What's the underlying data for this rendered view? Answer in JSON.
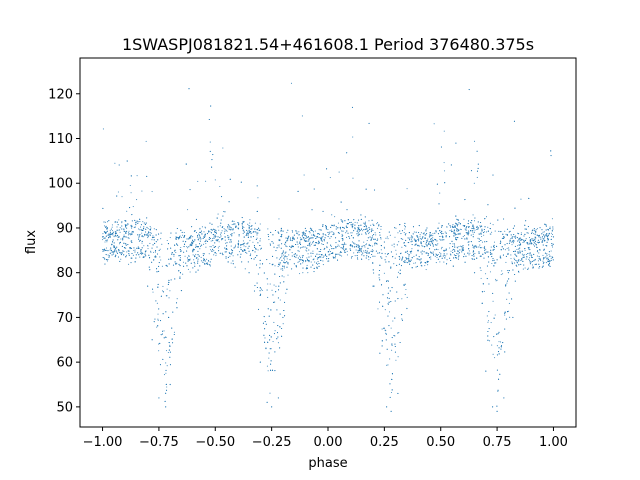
{
  "chart_data": {
    "type": "scatter",
    "title": "1SWASPJ081821.54+461608.1 Period 376480.375s",
    "xlabel": "phase",
    "ylabel": "flux",
    "xlim": [
      -1.1,
      1.1
    ],
    "ylim": [
      45.5,
      128
    ],
    "x_ticks": [
      -1.0,
      -0.75,
      -0.5,
      -0.25,
      0.0,
      0.25,
      0.5,
      0.75,
      1.0
    ],
    "x_tick_labels": [
      "−1.00",
      "−0.75",
      "−0.50",
      "−0.25",
      "0.00",
      "0.25",
      "0.50",
      "0.75",
      "1.00"
    ],
    "y_ticks": [
      50,
      60,
      70,
      80,
      90,
      100,
      110,
      120
    ],
    "y_tick_labels": [
      "50",
      "60",
      "70",
      "80",
      "90",
      "100",
      "110",
      "120"
    ],
    "grid": false,
    "point_color": "#1f77b4",
    "baseline_upper": 88.5,
    "baseline_lower": 84,
    "eclipses": [
      {
        "center": -0.72,
        "half_width": 0.1,
        "min_flux": 49
      },
      {
        "center": -0.25,
        "half_width": 0.1,
        "min_flux": 49
      },
      {
        "center": 0.28,
        "half_width": 0.1,
        "min_flux": 49
      },
      {
        "center": 0.75,
        "half_width": 0.1,
        "min_flux": 49
      }
    ],
    "sample_points": [
      [
        -1.0,
        88
      ],
      [
        -0.95,
        86
      ],
      [
        -0.9,
        88
      ],
      [
        -0.85,
        84
      ],
      [
        -0.8,
        77
      ],
      [
        -0.78,
        65
      ],
      [
        -0.75,
        52
      ],
      [
        -0.72,
        50
      ],
      [
        -0.7,
        55
      ],
      [
        -0.65,
        76
      ],
      [
        -0.6,
        85
      ],
      [
        -0.55,
        88
      ],
      [
        -0.5,
        89
      ],
      [
        -0.45,
        86
      ],
      [
        -0.4,
        84
      ],
      [
        -0.35,
        80
      ],
      [
        -0.3,
        60
      ],
      [
        -0.27,
        51
      ],
      [
        -0.25,
        50
      ],
      [
        -0.22,
        52
      ],
      [
        -0.2,
        70
      ],
      [
        -0.15,
        84
      ],
      [
        -0.1,
        87
      ],
      [
        -0.05,
        88
      ],
      [
        0.0,
        89
      ],
      [
        0.05,
        87
      ],
      [
        0.1,
        85
      ],
      [
        0.15,
        84
      ],
      [
        0.2,
        77
      ],
      [
        0.23,
        62
      ],
      [
        0.26,
        50
      ],
      [
        0.28,
        49
      ],
      [
        0.31,
        53
      ],
      [
        0.35,
        72
      ],
      [
        0.4,
        85
      ],
      [
        0.45,
        88
      ],
      [
        0.5,
        89
      ],
      [
        0.55,
        87
      ],
      [
        0.6,
        85
      ],
      [
        0.65,
        80
      ],
      [
        0.7,
        58
      ],
      [
        0.73,
        50
      ],
      [
        0.75,
        49
      ],
      [
        0.78,
        52
      ],
      [
        0.82,
        70
      ],
      [
        0.87,
        84
      ],
      [
        0.92,
        87
      ],
      [
        0.97,
        86
      ],
      [
        1.0,
        88
      ]
    ]
  }
}
